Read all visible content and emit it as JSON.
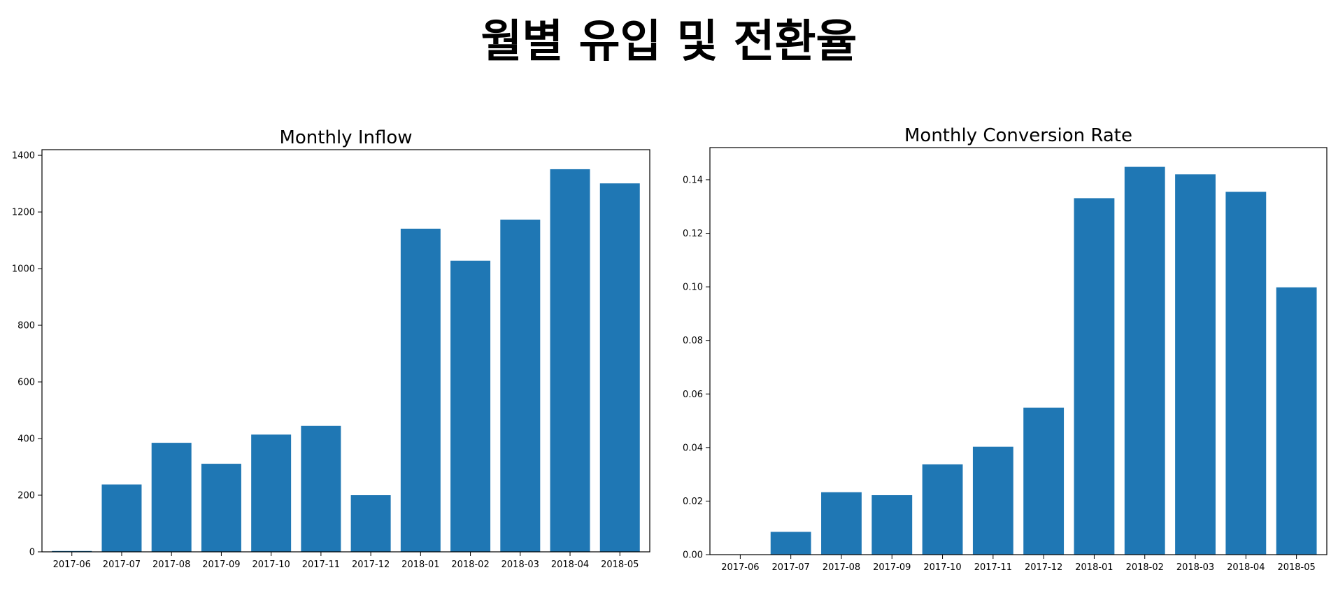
{
  "figure": {
    "suptitle": "월별 유입 및 전환율"
  },
  "chart_data": [
    {
      "type": "bar",
      "title": "Monthly Inflow",
      "xlabel": "",
      "ylabel": "",
      "categories": [
        "2017-06",
        "2017-07",
        "2017-08",
        "2017-09",
        "2017-10",
        "2017-11",
        "2017-12",
        "2018-01",
        "2018-02",
        "2018-03",
        "2018-04",
        "2018-05"
      ],
      "values": [
        3,
        238,
        385,
        311,
        414,
        445,
        200,
        1141,
        1028,
        1173,
        1351,
        1301
      ],
      "ylim": [
        0,
        1420
      ],
      "yticks": [
        0,
        200,
        400,
        600,
        800,
        1000,
        1200,
        1400
      ],
      "ytick_labels": [
        "0",
        "200",
        "400",
        "600",
        "800",
        "1000",
        "1200",
        "1400"
      ],
      "color": "#1f77b4",
      "grid": false
    },
    {
      "type": "bar",
      "title": "Monthly Conversion Rate",
      "xlabel": "",
      "ylabel": "",
      "categories": [
        "2017-06",
        "2017-07",
        "2017-08",
        "2017-09",
        "2017-10",
        "2017-11",
        "2017-12",
        "2018-01",
        "2018-02",
        "2018-03",
        "2018-04",
        "2018-05"
      ],
      "values": [
        0.0,
        0.0085,
        0.0233,
        0.0222,
        0.0337,
        0.0403,
        0.0549,
        0.1331,
        0.1448,
        0.142,
        0.1355,
        0.0998
      ],
      "ylim": [
        0,
        0.152
      ],
      "yticks": [
        0,
        0.02,
        0.04,
        0.06,
        0.08,
        0.1,
        0.12,
        0.14
      ],
      "ytick_labels": [
        "0.00",
        "0.02",
        "0.04",
        "0.06",
        "0.08",
        "0.10",
        "0.12",
        "0.14"
      ],
      "color": "#1f77b4",
      "grid": false
    }
  ]
}
